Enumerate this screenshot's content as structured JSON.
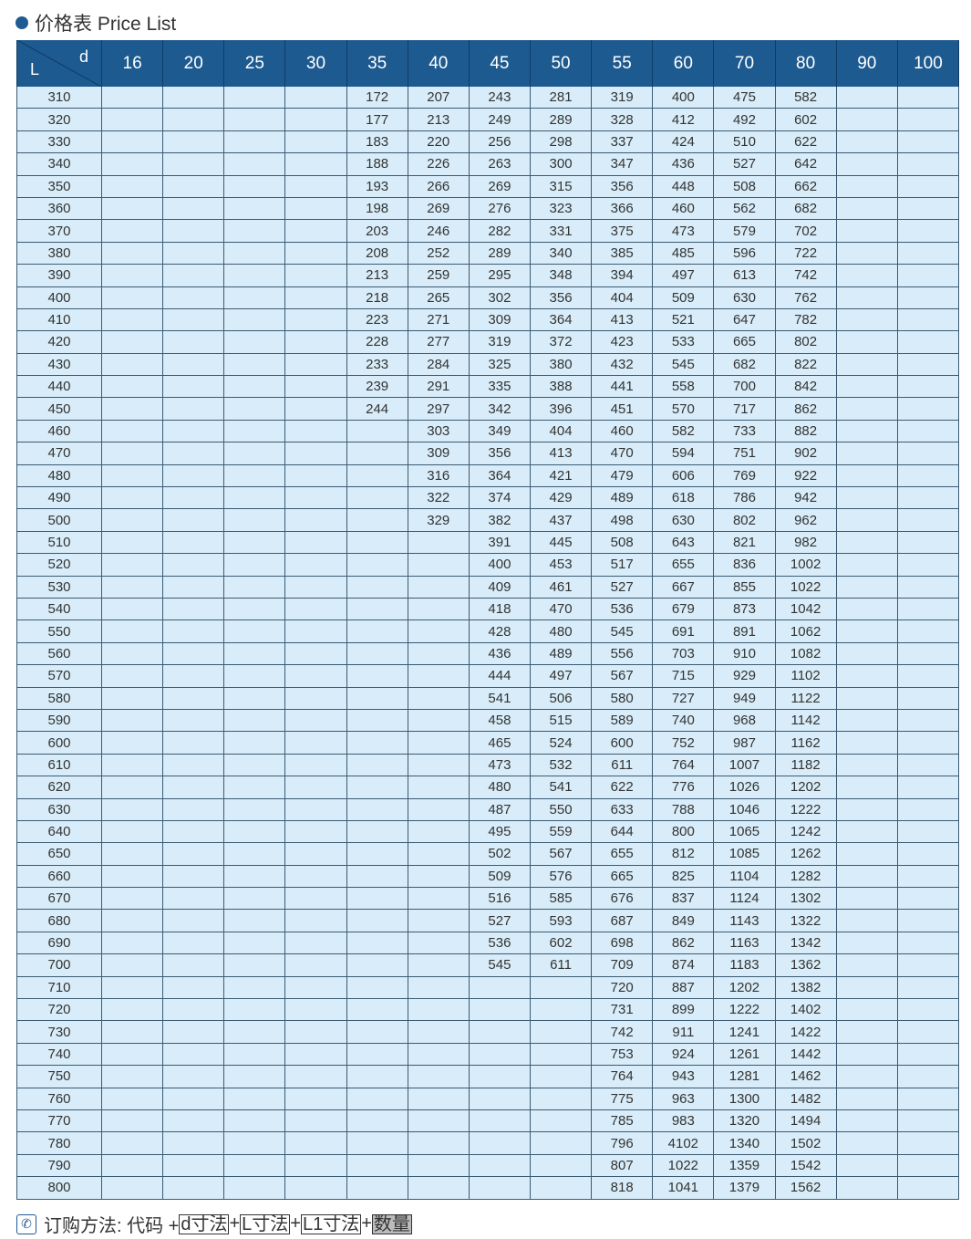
{
  "title": "价格表 Price List",
  "table": {
    "corner_d": "d",
    "corner_l": "L",
    "L_values": [
      "310",
      "320",
      "330",
      "340",
      "350",
      "360",
      "370",
      "380",
      "390",
      "400",
      "410",
      "420",
      "430",
      "440",
      "450",
      "460",
      "470",
      "480",
      "490",
      "500",
      "510",
      "520",
      "530",
      "540",
      "550",
      "560",
      "570",
      "580",
      "590",
      "600",
      "610",
      "620",
      "630",
      "640",
      "650",
      "660",
      "670",
      "680",
      "690",
      "700",
      "710",
      "720",
      "730",
      "740",
      "750",
      "760",
      "770",
      "780",
      "790",
      "800"
    ],
    "columns": [
      {
        "d": "16",
        "prices": []
      },
      {
        "d": "20",
        "prices": []
      },
      {
        "d": "25",
        "prices": []
      },
      {
        "d": "30",
        "prices": []
      },
      {
        "d": "35",
        "prices": [
          "172",
          "177",
          "183",
          "188",
          "193",
          "198",
          "203",
          "208",
          "213",
          "218",
          "223",
          "228",
          "233",
          "239",
          "244"
        ]
      },
      {
        "d": "40",
        "prices": [
          "207",
          "213",
          "220",
          "226",
          "266",
          "269",
          "246",
          "252",
          "259",
          "265",
          "271",
          "277",
          "284",
          "291",
          "297",
          "303",
          "309",
          "316",
          "322",
          "329"
        ]
      },
      {
        "d": "45",
        "prices": [
          "243",
          "249",
          "256",
          "263",
          "269",
          "276",
          "282",
          "289",
          "295",
          "302",
          "309",
          "319",
          "325",
          "335",
          "342",
          "349",
          "356",
          "364",
          "374",
          "382",
          "391",
          "400",
          "409",
          "418",
          "428",
          "436",
          "444",
          "541",
          "458",
          "465",
          "473",
          "480",
          "487",
          "495",
          "502",
          "509",
          "516",
          "527",
          "536",
          "545"
        ]
      },
      {
        "d": "50",
        "prices": [
          "281",
          "289",
          "298",
          "300",
          "315",
          "323",
          "331",
          "340",
          "348",
          "356",
          "364",
          "372",
          "380",
          "388",
          "396",
          "404",
          "413",
          "421",
          "429",
          "437",
          "445",
          "453",
          "461",
          "470",
          "480",
          "489",
          "497",
          "506",
          "515",
          "524",
          "532",
          "541",
          "550",
          "559",
          "567",
          "576",
          "585",
          "593",
          "602",
          "611"
        ]
      },
      {
        "d": "55",
        "prices": [
          "319",
          "328",
          "337",
          "347",
          "356",
          "366",
          "375",
          "385",
          "394",
          "404",
          "413",
          "423",
          "432",
          "441",
          "451",
          "460",
          "470",
          "479",
          "489",
          "498",
          "508",
          "517",
          "527",
          "536",
          "545",
          "556",
          "567",
          "580",
          "589",
          "600",
          "611",
          "622",
          "633",
          "644",
          "655",
          "665",
          "676",
          "687",
          "698",
          "709",
          "720",
          "731",
          "742",
          "753",
          "764",
          "775",
          "785",
          "796",
          "807",
          "818"
        ]
      },
      {
        "d": "60",
        "prices": [
          "400",
          "412",
          "424",
          "436",
          "448",
          "460",
          "473",
          "485",
          "497",
          "509",
          "521",
          "533",
          "545",
          "558",
          "570",
          "582",
          "594",
          "606",
          "618",
          "630",
          "643",
          "655",
          "667",
          "679",
          "691",
          "703",
          "715",
          "727",
          "740",
          "752",
          "764",
          "776",
          "788",
          "800",
          "812",
          "825",
          "837",
          "849",
          "862",
          "874",
          "887",
          "899",
          "911",
          "924",
          "943",
          "963",
          "983",
          "4102",
          "1022",
          "1041"
        ]
      },
      {
        "d": "70",
        "prices": [
          "475",
          "492",
          "510",
          "527",
          "508",
          "562",
          "579",
          "596",
          "613",
          "630",
          "647",
          "665",
          "682",
          "700",
          "717",
          "733",
          "751",
          "769",
          "786",
          "802",
          "821",
          "836",
          "855",
          "873",
          "891",
          "910",
          "929",
          "949",
          "968",
          "987",
          "1007",
          "1026",
          "1046",
          "1065",
          "1085",
          "1104",
          "1124",
          "1143",
          "1163",
          "1183",
          "1202",
          "1222",
          "1241",
          "1261",
          "1281",
          "1300",
          "1320",
          "1340",
          "1359",
          "1379"
        ]
      },
      {
        "d": "80",
        "prices": [
          "582",
          "602",
          "622",
          "642",
          "662",
          "682",
          "702",
          "722",
          "742",
          "762",
          "782",
          "802",
          "822",
          "842",
          "862",
          "882",
          "902",
          "922",
          "942",
          "962",
          "982",
          "1002",
          "1022",
          "1042",
          "1062",
          "1082",
          "1102",
          "1122",
          "1142",
          "1162",
          "1182",
          "1202",
          "1222",
          "1242",
          "1262",
          "1282",
          "1302",
          "1322",
          "1342",
          "1362",
          "1382",
          "1402",
          "1422",
          "1442",
          "1462",
          "1482",
          "1494",
          "1502",
          "1542",
          "1562"
        ]
      },
      {
        "d": "90",
        "prices": []
      },
      {
        "d": "100",
        "prices": []
      }
    ]
  },
  "footer": {
    "icon": "phone-icon",
    "label": "订购方法: 代码 +",
    "parts": [
      "d寸法",
      "L寸法",
      "L1寸法",
      "数量"
    ],
    "plus": "+"
  },
  "colors": {
    "header": "#1d5a8f",
    "row": "#d8edf9"
  }
}
